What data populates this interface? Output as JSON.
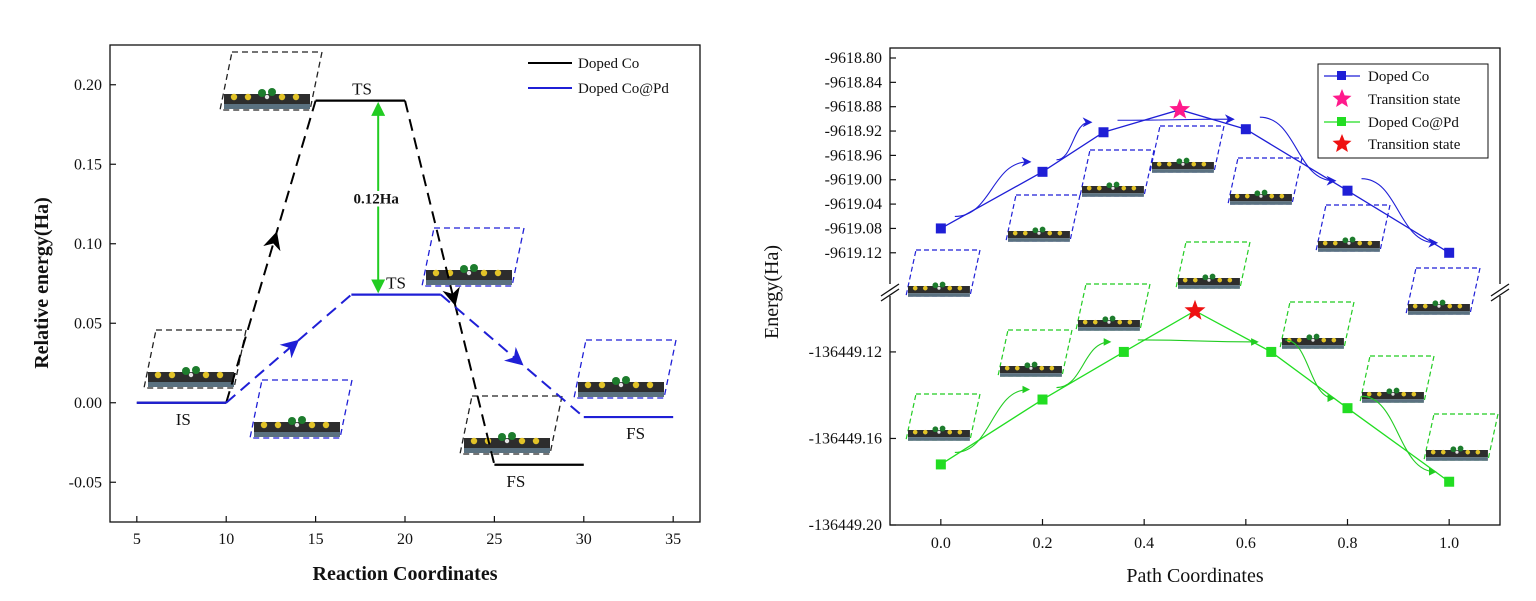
{
  "left_chart": {
    "type": "line",
    "xlabel": "Reaction Coordinates",
    "ylabel": "Relative energy(Ha)",
    "xlim": [
      3.5,
      36.5
    ],
    "ylim": [
      -0.075,
      0.225
    ],
    "xticks": [
      5,
      10,
      15,
      20,
      25,
      30,
      35
    ],
    "yticks": [
      -0.05,
      0.0,
      0.05,
      0.1,
      0.15,
      0.2
    ],
    "ytick_labels": [
      "-0.05",
      "0.00",
      "0.05",
      "0.10",
      "0.15",
      "0.20"
    ],
    "legend": [
      {
        "name": "Doped Co",
        "color": "#000000"
      },
      {
        "name": "Doped Co@Pd",
        "color": "#1f1fd6"
      }
    ],
    "series": [
      {
        "name": "Doped Co",
        "color": "#000000",
        "levels": [
          {
            "label": "IS",
            "x": [
              5,
              10
            ],
            "y": 0.0
          },
          {
            "label": "TS",
            "x": [
              15,
              20
            ],
            "y": 0.19
          },
          {
            "label": "FS",
            "x": [
              25,
              30
            ],
            "y": -0.039
          }
        ]
      },
      {
        "name": "Doped Co@Pd",
        "color": "#1f1fd6",
        "levels": [
          {
            "label": "IS",
            "x": [
              5,
              10
            ],
            "y": 0.0
          },
          {
            "label": "TS",
            "x": [
              17,
              22
            ],
            "y": 0.068
          },
          {
            "label": "FS",
            "x": [
              30,
              35
            ],
            "y": -0.009
          }
        ]
      }
    ],
    "annotation": {
      "text": "0.12Ha",
      "x": 18.5,
      "y_from": 0.068,
      "y_to": 0.19,
      "color": "#22cc22"
    },
    "level_labels": [
      {
        "text": "TS",
        "x": 17.6,
        "y": 0.19
      },
      {
        "text": "TS",
        "x": 19.5,
        "y": 0.068
      },
      {
        "text": "IS",
        "x": 7.6,
        "y": 0.0
      },
      {
        "text": "FS",
        "x": 26.2,
        "y": -0.039
      },
      {
        "text": "FS",
        "x": 32.9,
        "y": -0.009
      }
    ]
  },
  "right_chart": {
    "type": "line",
    "xlabel": "Path Coordinates",
    "ylabel": "Energy(Ha)",
    "xlim": [
      -0.1,
      1.1
    ],
    "xticks": [
      0.0,
      0.2,
      0.4,
      0.6,
      0.8,
      1.0
    ],
    "xtick_labels": [
      "0.0",
      "0.2",
      "0.4",
      "0.6",
      "0.8",
      "1.0"
    ],
    "broken_y_axis": true,
    "upper_ylim": [
      -9619.145,
      -9618.8
    ],
    "upper_yticks": [
      -9618.8,
      -9618.84,
      -9618.88,
      -9618.92,
      -9618.96,
      -9619.0,
      -9619.04,
      -9619.08,
      -9619.12
    ],
    "upper_ytick_labels": [
      "-9618.80",
      "-9618.84",
      "-9618.88",
      "-9618.92",
      "-9618.96",
      "-9619.00",
      "-9619.04",
      "-9619.08",
      "-9619.12"
    ],
    "lower_ylim": [
      -136449.2,
      -136449.096
    ],
    "lower_yticks": [
      -136449.12,
      -136449.16,
      -136449.2
    ],
    "lower_ytick_labels": [
      "-136449.12",
      "-136449.16",
      "-136449.20"
    ],
    "legend": [
      {
        "name": "Doped Co",
        "marker": "square",
        "color": "#1f1fd6"
      },
      {
        "name": "Transition state",
        "marker": "star",
        "color": "#ff1a8c"
      },
      {
        "name": "Doped Co@Pd",
        "marker": "square",
        "color": "#22dd22"
      },
      {
        "name": "Transition state",
        "marker": "star",
        "color": "#ee1111"
      }
    ],
    "series": [
      {
        "name": "Doped Co",
        "color": "#1f1fd6",
        "panel": "upper",
        "x": [
          0.0,
          0.2,
          0.32,
          0.6,
          0.8,
          1.0
        ],
        "y": [
          -9619.08,
          -9618.987,
          -9618.922,
          -9618.917,
          -9619.018,
          -9619.12
        ],
        "transition_state": {
          "x": 0.47,
          "y": -9618.885,
          "color": "#ff1a8c"
        }
      },
      {
        "name": "Doped Co@Pd",
        "color": "#22dd22",
        "panel": "lower",
        "x": [
          0.0,
          0.2,
          0.36,
          0.65,
          0.8,
          1.0
        ],
        "y": [
          -136449.172,
          -136449.142,
          -136449.12,
          -136449.12,
          -136449.146,
          -136449.18
        ],
        "transition_state": {
          "x": 0.5,
          "y": -136449.101,
          "color": "#ee1111"
        }
      }
    ]
  }
}
